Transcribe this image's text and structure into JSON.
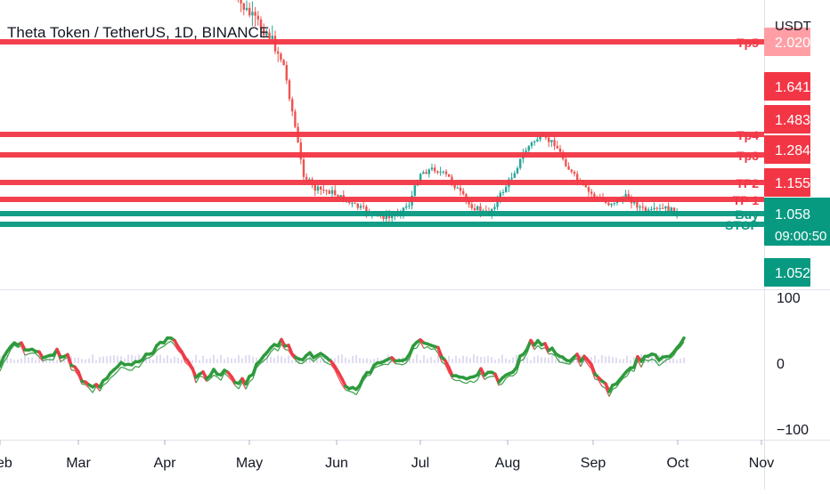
{
  "header": {
    "symbol_title": "Theta Token / TetherUS, 1D, BINANCE"
  },
  "price_axis": {
    "currency": "USDT",
    "ticks": [
      {
        "label": "2.020",
        "value": 2.02,
        "bg": "#ff9fa5"
      },
      {
        "label": "1.641",
        "value": 1.641,
        "bg": "#f23645"
      },
      {
        "label": "1.483",
        "value": 1.483,
        "bg": "#f23645"
      },
      {
        "label": "1.284",
        "value": 1.284,
        "bg": "#f23645"
      },
      {
        "label": "1.155",
        "value": 1.155,
        "bg": "#f23645"
      },
      {
        "label": "1.058",
        "value": 1.058,
        "bg": "#089981",
        "countdown": "09:00:50"
      },
      {
        "label": "1.052",
        "value": 1.052,
        "bg": "#089981"
      }
    ]
  },
  "osc_axis": {
    "ticks": [
      "100",
      "0",
      "−100"
    ]
  },
  "x_axis": {
    "labels": [
      "Feb",
      "Mar",
      "Apr",
      "May",
      "Jun",
      "Jul",
      "Aug",
      "Sep",
      "Oct",
      "Nov"
    ]
  },
  "chart_data": {
    "type": "line",
    "title": "Theta Token / TetherUS, 1D, BINANCE",
    "ylabel": "USDT",
    "x_categories": [
      "Feb",
      "Mar",
      "Apr",
      "May",
      "Jun",
      "Jul",
      "Aug",
      "Sep",
      "Oct",
      "Nov"
    ],
    "levels": [
      {
        "name": "Tp5",
        "price": 2.02,
        "color": "#f23645"
      },
      {
        "name": "Tp4",
        "price": 1.483,
        "color": "#f23645"
      },
      {
        "name": "Tp3",
        "price": 1.284,
        "color": "#f23645"
      },
      {
        "name": "TP2",
        "price": 1.155,
        "color": "#f23645"
      },
      {
        "name": "TP 1",
        "price": 1.09,
        "color": "#f23645"
      },
      {
        "name": "Buy",
        "price": 1.058,
        "color": "#089981"
      },
      {
        "name": "STOP",
        "price": 0.97,
        "color": "#089981"
      }
    ],
    "price_series": [
      [
        "2021-04-25",
        3.2
      ],
      [
        "2021-05-01",
        2.7
      ],
      [
        "2021-05-08",
        2.2
      ],
      [
        "2021-05-13",
        1.9
      ],
      [
        "2021-05-17",
        1.55
      ],
      [
        "2021-05-20",
        1.2
      ],
      [
        "2021-05-24",
        1.13
      ],
      [
        "2021-05-30",
        1.12
      ],
      [
        "2021-06-06",
        1.08
      ],
      [
        "2021-06-13",
        1.06
      ],
      [
        "2021-06-20",
        1.02
      ],
      [
        "2021-06-27",
        1.08
      ],
      [
        "2021-07-01",
        1.2
      ],
      [
        "2021-07-06",
        1.22
      ],
      [
        "2021-07-11",
        1.18
      ],
      [
        "2021-07-18",
        1.08
      ],
      [
        "2021-07-25",
        1.05
      ],
      [
        "2021-08-01",
        1.15
      ],
      [
        "2021-08-08",
        1.35
      ],
      [
        "2021-08-12",
        1.45
      ],
      [
        "2021-08-18",
        1.4
      ],
      [
        "2021-08-24",
        1.2
      ],
      [
        "2021-08-30",
        1.12
      ],
      [
        "2021-09-06",
        1.08
      ],
      [
        "2021-09-13",
        1.1
      ],
      [
        "2021-09-20",
        1.06
      ],
      [
        "2021-09-27",
        1.07
      ],
      [
        "2021-10-01",
        1.058
      ]
    ],
    "oscillator": {
      "ylim": [
        -100,
        100
      ],
      "ticks": [
        100,
        0,
        -100
      ]
    }
  }
}
